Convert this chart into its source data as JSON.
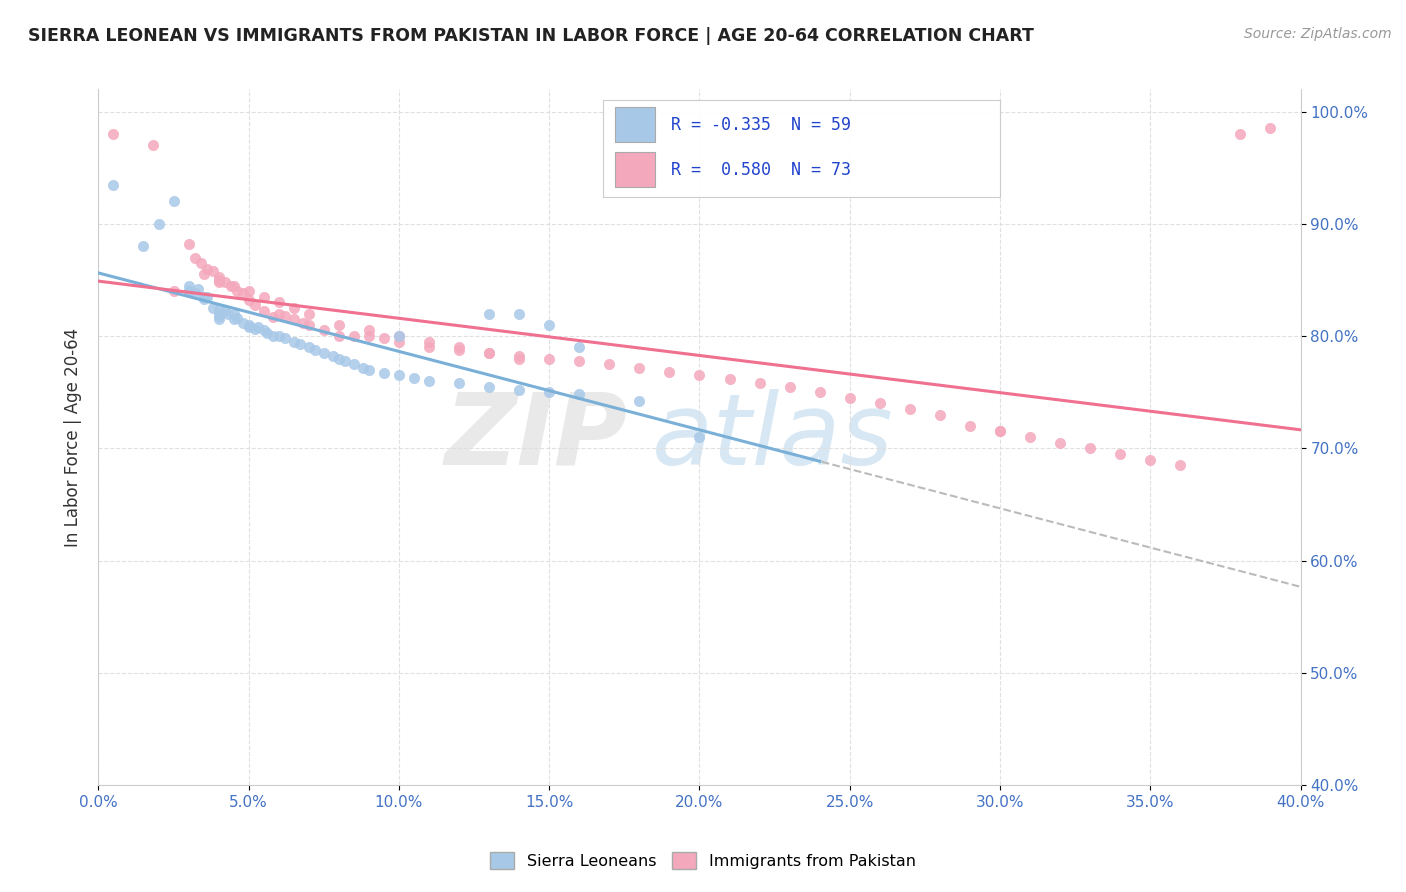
{
  "title": "SIERRA LEONEAN VS IMMIGRANTS FROM PAKISTAN IN LABOR FORCE | AGE 20-64 CORRELATION CHART",
  "source": "Source: ZipAtlas.com",
  "ylabel_label": "In Labor Force | Age 20-64",
  "legend_label1": "Sierra Leoneans",
  "legend_label2": "Immigrants from Pakistan",
  "color_blue": "#a8c8e8",
  "color_pink": "#f4a8bc",
  "color_blue_line": "#7ab0d8",
  "color_pink_line": "#f07090",
  "color_dashed": "#bbbbbb",
  "color_tick": "#4472c4",
  "R_blue": -0.335,
  "N_blue": 59,
  "R_pink": 0.58,
  "N_pink": 73,
  "x_range": [
    0.0,
    0.4
  ],
  "y_range": [
    0.4,
    1.02
  ],
  "blue_points_x": [
    0.005,
    0.015,
    0.02,
    0.025,
    0.03,
    0.03,
    0.03,
    0.032,
    0.033,
    0.035,
    0.035,
    0.036,
    0.038,
    0.04,
    0.04,
    0.04,
    0.04,
    0.042,
    0.043,
    0.045,
    0.045,
    0.046,
    0.048,
    0.05,
    0.05,
    0.052,
    0.053,
    0.055,
    0.056,
    0.058,
    0.06,
    0.062,
    0.065,
    0.067,
    0.07,
    0.072,
    0.075,
    0.078,
    0.08,
    0.082,
    0.085,
    0.088,
    0.09,
    0.095,
    0.1,
    0.105,
    0.11,
    0.12,
    0.13,
    0.14,
    0.15,
    0.16,
    0.18,
    0.2,
    0.13,
    0.14,
    0.15,
    0.16,
    0.1
  ],
  "blue_points_y": [
    0.935,
    0.88,
    0.9,
    0.92,
    0.845,
    0.84,
    0.84,
    0.838,
    0.842,
    0.833,
    0.835,
    0.835,
    0.825,
    0.823,
    0.82,
    0.818,
    0.815,
    0.822,
    0.82,
    0.82,
    0.815,
    0.816,
    0.812,
    0.81,
    0.808,
    0.806,
    0.808,
    0.805,
    0.803,
    0.8,
    0.8,
    0.798,
    0.795,
    0.793,
    0.79,
    0.788,
    0.785,
    0.782,
    0.78,
    0.778,
    0.775,
    0.772,
    0.77,
    0.767,
    0.765,
    0.763,
    0.76,
    0.758,
    0.755,
    0.752,
    0.75,
    0.748,
    0.742,
    0.71,
    0.82,
    0.82,
    0.81,
    0.79,
    0.8
  ],
  "pink_points_x": [
    0.005,
    0.018,
    0.025,
    0.03,
    0.032,
    0.034,
    0.036,
    0.038,
    0.04,
    0.04,
    0.042,
    0.044,
    0.046,
    0.048,
    0.05,
    0.052,
    0.055,
    0.058,
    0.06,
    0.062,
    0.065,
    0.068,
    0.07,
    0.075,
    0.08,
    0.085,
    0.09,
    0.095,
    0.1,
    0.11,
    0.12,
    0.13,
    0.14,
    0.15,
    0.16,
    0.17,
    0.18,
    0.19,
    0.2,
    0.21,
    0.22,
    0.23,
    0.24,
    0.25,
    0.26,
    0.27,
    0.28,
    0.29,
    0.3,
    0.31,
    0.32,
    0.33,
    0.34,
    0.35,
    0.36,
    0.3,
    0.035,
    0.04,
    0.045,
    0.05,
    0.055,
    0.06,
    0.065,
    0.07,
    0.08,
    0.09,
    0.1,
    0.11,
    0.12,
    0.13,
    0.14,
    0.38,
    0.39
  ],
  "pink_points_y": [
    0.98,
    0.97,
    0.84,
    0.882,
    0.87,
    0.865,
    0.86,
    0.858,
    0.853,
    0.848,
    0.848,
    0.845,
    0.84,
    0.838,
    0.832,
    0.828,
    0.822,
    0.817,
    0.82,
    0.818,
    0.815,
    0.812,
    0.81,
    0.805,
    0.8,
    0.8,
    0.8,
    0.798,
    0.795,
    0.79,
    0.788,
    0.785,
    0.782,
    0.78,
    0.778,
    0.775,
    0.772,
    0.768,
    0.765,
    0.762,
    0.758,
    0.755,
    0.75,
    0.745,
    0.74,
    0.735,
    0.73,
    0.72,
    0.715,
    0.71,
    0.705,
    0.7,
    0.695,
    0.69,
    0.685,
    0.715,
    0.855,
    0.85,
    0.845,
    0.84,
    0.835,
    0.83,
    0.825,
    0.82,
    0.81,
    0.805,
    0.8,
    0.795,
    0.79,
    0.785,
    0.78,
    0.98,
    0.985
  ]
}
